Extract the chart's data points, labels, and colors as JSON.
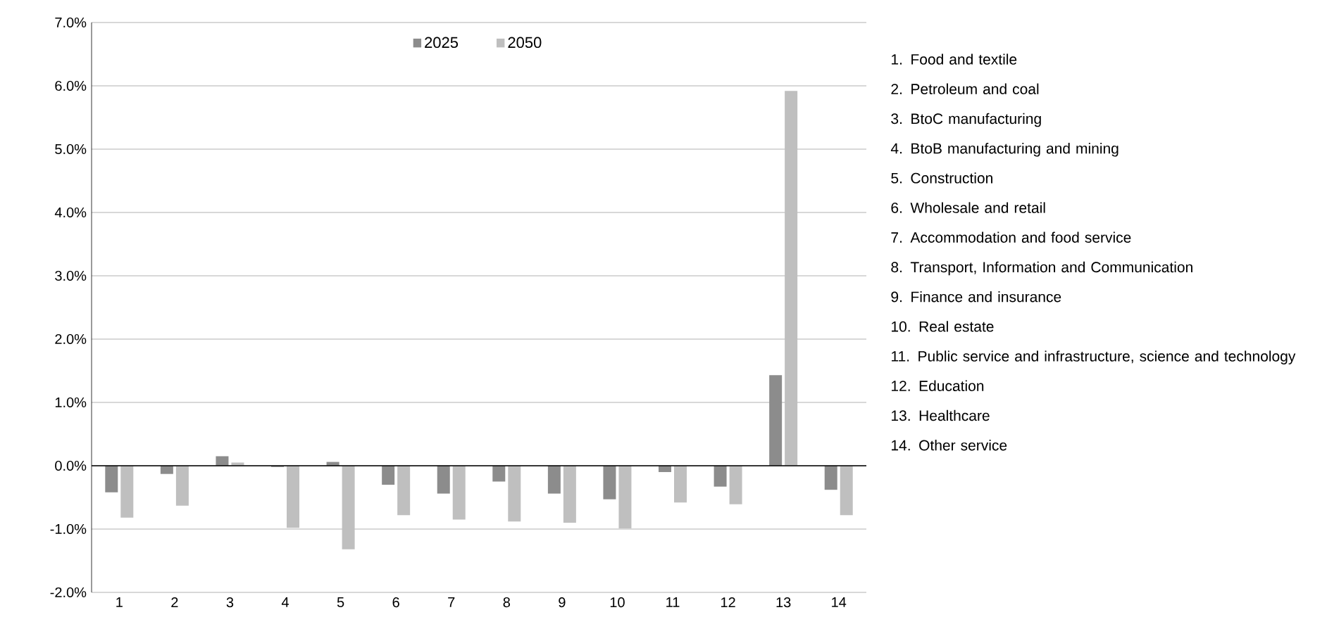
{
  "chart_data": {
    "type": "bar",
    "categories": [
      "1",
      "2",
      "3",
      "4",
      "5",
      "6",
      "7",
      "8",
      "9",
      "10",
      "11",
      "12",
      "13",
      "14"
    ],
    "series": [
      {
        "name": "2025",
        "color": "#8c8c8c",
        "values": [
          -0.42,
          -0.13,
          0.15,
          -0.02,
          0.06,
          -0.3,
          -0.44,
          -0.25,
          -0.44,
          -0.53,
          -0.1,
          -0.33,
          1.43,
          -0.38
        ]
      },
      {
        "name": "2050",
        "color": "#bfbfbf",
        "values": [
          -0.82,
          -0.63,
          0.05,
          -0.98,
          -1.32,
          -0.78,
          -0.85,
          -0.88,
          -0.9,
          -0.99,
          -0.58,
          -0.61,
          5.92,
          -0.78
        ]
      }
    ],
    "ylim": [
      -2,
      7
    ],
    "yticks": [
      {
        "value": -2,
        "label": "-2.0%"
      },
      {
        "value": -1,
        "label": "-1.0%"
      },
      {
        "value": 0,
        "label": "0.0%"
      },
      {
        "value": 1,
        "label": "1.0%"
      },
      {
        "value": 2,
        "label": "2.0%"
      },
      {
        "value": 3,
        "label": "3.0%"
      },
      {
        "value": 4,
        "label": "4.0%"
      },
      {
        "value": 5,
        "label": "5.0%"
      },
      {
        "value": 6,
        "label": "6.0%"
      },
      {
        "value": 7,
        "label": "7.0%"
      }
    ],
    "grid": "y",
    "legend": "top center",
    "annotations": [
      "1. Food and textile",
      "2. Petroleum and coal",
      "3. BtoC manufacturing",
      "4. BtoB manufacturing and mining",
      "5. Construction",
      "6. Wholesale and retail",
      "7. Accommodation and food service",
      "8. Transport, Information and Communication",
      "9. Finance and insurance",
      "10. Real estate",
      "11. Public service and infrastructure, science and technology",
      "12. Education",
      "13. Healthcare",
      "14. Other service"
    ]
  }
}
